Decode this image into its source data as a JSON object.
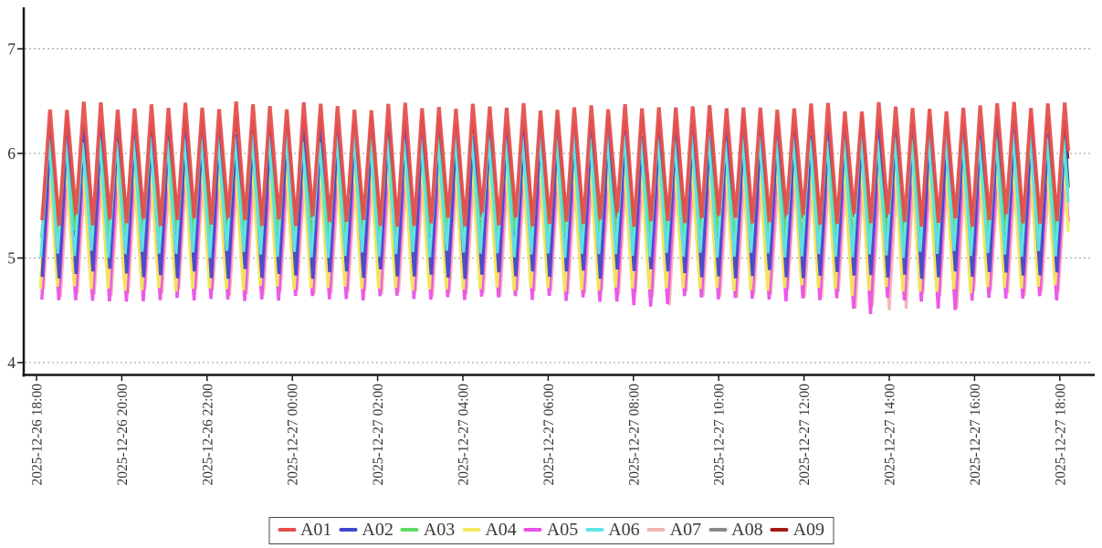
{
  "figure": {
    "background_color": "#ffffff",
    "axis_color": "#161616",
    "grid_color": "#999999",
    "text_color": "#333333",
    "grid_dash": "2 3"
  },
  "chart_data": {
    "type": "line",
    "title": "",
    "xlabel": "",
    "ylabel": "",
    "x_axis": {
      "labels": [
        "2025-12-26 18:00",
        "2025-12-26 20:00",
        "2025-12-26 22:00",
        "2025-12-27 00:00",
        "2025-12-27 02:00",
        "2025-12-27 04:00",
        "2025-12-27 06:00",
        "2025-12-27 08:00",
        "2025-12-27 10:00",
        "2025-12-27 12:00",
        "2025-12-27 14:00",
        "2025-12-27 16:00",
        "2025-12-27 18:00"
      ],
      "tick_interval_minutes": 120,
      "data_t_start_minutes": 8,
      "data_t_end_minutes": 1452
    },
    "y_axis": {
      "ticks": [
        "7",
        "6",
        "5",
        "4"
      ],
      "tick_values": [
        7,
        6,
        5,
        4
      ],
      "visible_range": [
        3.89,
        7.38
      ],
      "grid": true
    },
    "waveform": {
      "period_minutes": 23.8,
      "rise_minutes": 11,
      "description": "All nine series oscillate as sharp sawtooth/zigzag waves, ~60 cycles across 24 h; envelopes below give per-series peak and trough value ranges read from the y-axis."
    },
    "series": [
      {
        "name": "A01",
        "color": "#e5504e",
        "stroke_width": 4,
        "z": 9,
        "phase_minutes": 0,
        "peak_range": [
          6.4,
          6.5
        ],
        "trough_range": [
          5.3,
          5.44
        ]
      },
      {
        "name": "A02",
        "color": "#4247cb",
        "stroke_width": 3.5,
        "z": 6,
        "phase_minutes": 0,
        "peak_range": [
          6.16,
          6.26
        ],
        "trough_range": [
          4.8,
          4.9
        ]
      },
      {
        "name": "A03",
        "color": "#5fdc63",
        "stroke_width": 2.5,
        "z": 7,
        "phase_minutes": -1.5,
        "peak_range": [
          6.08,
          6.16
        ],
        "trough_range": [
          5.18,
          5.26
        ]
      },
      {
        "name": "A04",
        "color": "#f2ea5a",
        "stroke_width": 3.5,
        "z": 5,
        "phase_minutes": -2.5,
        "peak_range": [
          6.0,
          6.1
        ],
        "trough_range": [
          4.68,
          4.74
        ]
      },
      {
        "name": "A05",
        "color": "#eb50e7",
        "stroke_width": 3.5,
        "z": 4,
        "phase_minutes": -0.5,
        "peak_range": [
          5.86,
          5.94
        ],
        "trough_range": [
          4.58,
          4.64
        ]
      },
      {
        "name": "A06",
        "color": "#5ee6ea",
        "stroke_width": 3,
        "z": 8,
        "phase_minutes": -2,
        "peak_range": [
          6.1,
          6.2
        ],
        "trough_range": [
          5.0,
          5.07
        ]
      },
      {
        "name": "A07",
        "color": "#f2b3b1",
        "stroke_width": 3,
        "z": 3,
        "phase_minutes": 2,
        "peak_range": [
          5.8,
          5.88
        ],
        "trough_range": [
          4.62,
          4.7
        ]
      },
      {
        "name": "A08",
        "color": "#8b8b8b",
        "stroke_width": 2.5,
        "z": 2,
        "phase_minutes": 1.5,
        "peak_range": [
          5.96,
          6.06
        ],
        "trough_range": [
          4.95,
          5.05
        ]
      },
      {
        "name": "A09",
        "color": "#a31916",
        "stroke_width": 2.5,
        "z": 1,
        "phase_minutes": 0,
        "peak_range": [
          6.28,
          6.36
        ],
        "trough_range": [
          5.32,
          5.4
        ]
      }
    ],
    "anomalies": [
      {
        "t_range": [
          840,
          895
        ],
        "chance": 0.5,
        "extra_trough_dip": {
          "A07": 0.12,
          "A05": 0.05
        }
      },
      {
        "t_range": [
          1145,
          1315
        ],
        "chance": 0.55,
        "extra_trough_dip": {
          "A05": 0.12,
          "A07": 0.16,
          "A04": 0.05
        }
      }
    ],
    "legend": {
      "position": "bottom-center",
      "border": true
    }
  }
}
